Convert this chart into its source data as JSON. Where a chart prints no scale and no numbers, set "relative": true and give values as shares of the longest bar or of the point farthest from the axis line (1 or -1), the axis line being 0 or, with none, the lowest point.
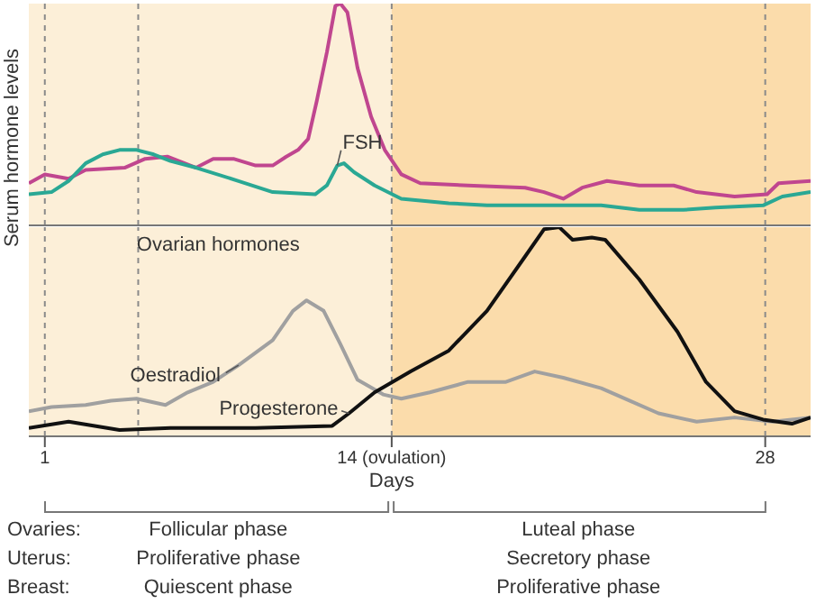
{
  "chart_data": [
    {
      "type": "line",
      "ylabel": "Serum hormone levels",
      "relative": true,
      "xlim": [
        0.4,
        29.7
      ],
      "tick_labels": false,
      "bands": [
        {
          "axis": "x",
          "from": 0.4,
          "to": 14,
          "color": "#fcefd8"
        },
        {
          "axis": "x",
          "from": 14,
          "to": 29.7,
          "color": "#fbdcab"
        }
      ],
      "ref_lines": [
        {
          "axis": "x",
          "value": 1,
          "color": "#8a8a8a",
          "line_style": "dashed"
        },
        {
          "axis": "x",
          "value": 4.5,
          "color": "#8a8a8a",
          "line_style": "dashed"
        },
        {
          "axis": "x",
          "value": 14,
          "color": "#8a8a8a",
          "line_style": "dashed"
        },
        {
          "axis": "x",
          "value": 28,
          "color": "#8a8a8a",
          "line_style": "dashed"
        }
      ],
      "series": [
        {
          "color": "#c0468f",
          "x": [
            0.4,
            1,
            1.89,
            2.53,
            3.99,
            4.76,
            5.59,
            6.67,
            7.31,
            8.07,
            8.9,
            9.54,
            10.05,
            10.49,
            10.87,
            11.19,
            11.57,
            11.89,
            12.08,
            12.34,
            12.72,
            13.23,
            13.74,
            14.36,
            15.07,
            16.86,
            19.0,
            19.71,
            20.43,
            21.14,
            22.07,
            23.28,
            24.57,
            25.43,
            26.85,
            28.07,
            28.5,
            29.7
          ],
          "values": [
            0.19,
            0.23,
            0.21,
            0.25,
            0.26,
            0.3,
            0.31,
            0.26,
            0.3,
            0.3,
            0.27,
            0.27,
            0.31,
            0.34,
            0.39,
            0.56,
            0.78,
            0.99,
            1,
            0.96,
            0.71,
            0.49,
            0.34,
            0.23,
            0.19,
            0.18,
            0.17,
            0.15,
            0.12,
            0.17,
            0.2,
            0.18,
            0.18,
            0.15,
            0.13,
            0.14,
            0.19,
            0.2
          ]
        },
        {
          "name": "FSH",
          "color": "#2aa894",
          "x": [
            0.4,
            1.25,
            1.89,
            2.53,
            3.17,
            3.8,
            4.44,
            5.08,
            5.71,
            6.67,
            8.26,
            9.54,
            11.13,
            11.57,
            11.96,
            12.21,
            12.59,
            13.36,
            14.36,
            16.14,
            17.57,
            19.0,
            20.43,
            21.85,
            23.28,
            24.93,
            26.14,
            27.92,
            28.64,
            29.7
          ],
          "values": [
            0.14,
            0.15,
            0.2,
            0.28,
            0.32,
            0.34,
            0.34,
            0.32,
            0.29,
            0.26,
            0.2,
            0.15,
            0.14,
            0.18,
            0.27,
            0.28,
            0.24,
            0.18,
            0.12,
            0.1,
            0.09,
            0.09,
            0.09,
            0.09,
            0.07,
            0.07,
            0.08,
            0.09,
            0.13,
            0.15
          ]
        }
      ]
    },
    {
      "type": "line",
      "title": "Ovarian hormones",
      "xlabel": "Days",
      "relative": true,
      "xlim": [
        0.4,
        29.7
      ],
      "xticks": [
        1,
        {
          "value": 14,
          "label": "14 (ovulation)"
        },
        28
      ],
      "tick_labels": "x",
      "bands": [
        {
          "axis": "x",
          "from": 0.4,
          "to": 14,
          "color": "#fcefd8"
        },
        {
          "axis": "x",
          "from": 14,
          "to": 29.7,
          "color": "#fbdcab"
        }
      ],
      "ref_lines": [
        {
          "axis": "x",
          "value": 1,
          "color": "#8a8a8a",
          "line_style": "dashed"
        },
        {
          "axis": "x",
          "value": 4.5,
          "color": "#8a8a8a",
          "line_style": "dashed"
        },
        {
          "axis": "x",
          "value": 14,
          "color": "#8a8a8a",
          "line_style": "dashed"
        },
        {
          "axis": "x",
          "value": 28,
          "color": "#8a8a8a",
          "line_style": "dashed"
        }
      ],
      "series": [
        {
          "name": "Oestradiol",
          "color": "#a0a0a0",
          "x": [
            0.4,
            1.25,
            2.53,
            3.48,
            4.44,
            5.52,
            6.35,
            7.31,
            8.26,
            9.54,
            10.3,
            10.81,
            11.45,
            12.08,
            12.72,
            13.68,
            14.36,
            15.43,
            16.86,
            18.28,
            19.36,
            20.43,
            21.85,
            22.93,
            24.0,
            25.43,
            26.85,
            28.28,
            29.7
          ],
          "values": [
            0.12,
            0.14,
            0.15,
            0.17,
            0.18,
            0.15,
            0.21,
            0.26,
            0.34,
            0.46,
            0.6,
            0.65,
            0.6,
            0.44,
            0.27,
            0.2,
            0.18,
            0.21,
            0.26,
            0.26,
            0.31,
            0.28,
            0.23,
            0.17,
            0.11,
            0.07,
            0.09,
            0.07,
            0.09
          ]
        },
        {
          "name": "Progesterone",
          "color": "#111111",
          "x": [
            0.4,
            1.89,
            3.8,
            5.71,
            8.9,
            11.77,
            12.4,
            13.36,
            14.71,
            16.14,
            17.57,
            19.0,
            19.71,
            20.28,
            20.78,
            21.5,
            22.0,
            23.28,
            24.71,
            25.78,
            26.85,
            27.92,
            29.0,
            29.7
          ],
          "values": [
            0.04,
            0.07,
            0.03,
            0.04,
            0.04,
            0.05,
            0.11,
            0.21,
            0.31,
            0.41,
            0.6,
            0.86,
            0.99,
            1,
            0.94,
            0.95,
            0.94,
            0.75,
            0.5,
            0.26,
            0.12,
            0.08,
            0.06,
            0.09
          ]
        }
      ],
      "annotations": [
        "Ovaries:",
        "Follicular phase",
        "Luteal phase",
        "Uterus:",
        "Proliferative phase",
        "Secretory phase",
        "Breast:",
        "Quiescent phase",
        "Proliferative phase"
      ]
    }
  ]
}
